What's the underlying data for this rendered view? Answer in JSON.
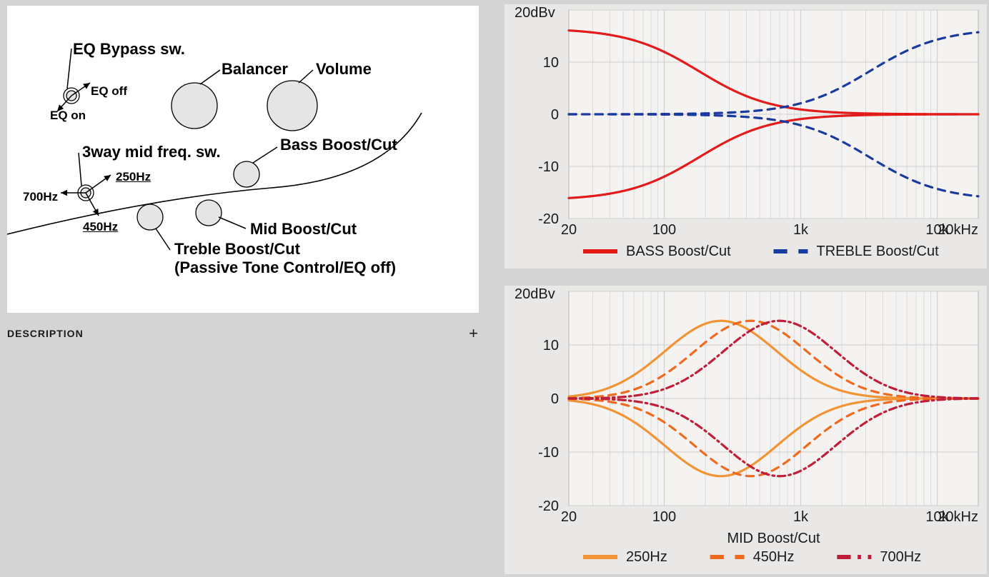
{
  "colors": {
    "page_bg": "#d4d4d4",
    "panel_bg": "#ffffff",
    "chart_bg": "#e9e8e7",
    "plot_bg": "#f4f3f2",
    "grid": "#cfcfcf",
    "axis_text": "#1a1a1a",
    "black": "#000000",
    "knob_fill": "#e5e5e5",
    "series_bass": "#e31b1b",
    "series_treble": "#1a3a9e",
    "series_250": "#f29436",
    "series_450": "#ef6a1f",
    "series_700": "#c01f3a"
  },
  "diagram": {
    "labels": {
      "eq_bypass": "EQ Bypass sw.",
      "balancer": "Balancer",
      "volume": "Volume",
      "eq_off": "EQ off",
      "eq_on": "EQ on",
      "midfreq": "3way mid freq. sw.",
      "bass": "Bass Boost/Cut",
      "f250": "250Hz",
      "f450": "450Hz",
      "f700": "700Hz",
      "mid": "Mid Boost/Cut",
      "treble1": "Treble Boost/Cut",
      "treble2": "(Passive Tone Control/EQ off)"
    },
    "label_fontsize_main": 22,
    "label_fontsize_sub": 17
  },
  "description_heading": "DESCRIPTION",
  "chart_common": {
    "x_ticks": [
      20,
      100,
      1000,
      10000,
      20000
    ],
    "x_tick_labels": [
      "20",
      "100",
      "1k",
      "10k",
      "20kHz"
    ],
    "y_ticks": [
      -20,
      -10,
      0,
      10,
      20
    ],
    "y_tick_labels": [
      "-20",
      "-10",
      "0",
      "10",
      "20dBv"
    ],
    "x_scale": "log",
    "xlim": [
      20,
      20000
    ],
    "ylim": [
      -20,
      20
    ],
    "axis_fontsize": 20,
    "legend_fontsize": 20,
    "line_width": 3.2,
    "swatch_width": 6
  },
  "chart1": {
    "type": "line",
    "legend": [
      {
        "label": "BASS Boost/Cut",
        "color": "#e31b1b",
        "dash": "solid"
      },
      {
        "label": "TREBLE Boost/Cut",
        "color": "#1a3a9e",
        "dash": "dash"
      }
    ],
    "series": [
      {
        "name": "bass_boost",
        "color": "#e31b1b",
        "dash": "solid",
        "shape": "shelf_low",
        "gain": 16.5,
        "fc": 180
      },
      {
        "name": "bass_cut",
        "color": "#e31b1b",
        "dash": "solid",
        "shape": "shelf_low",
        "gain": -16.5,
        "fc": 180
      },
      {
        "name": "treble_boost",
        "color": "#1a3a9e",
        "dash": "dash",
        "shape": "shelf_high",
        "gain": 16.5,
        "fc": 3200
      },
      {
        "name": "treble_cut",
        "color": "#1a3a9e",
        "dash": "dash",
        "shape": "shelf_high",
        "gain": -16.5,
        "fc": 3200
      }
    ]
  },
  "chart2": {
    "type": "line",
    "axis_label": "MID Boost/Cut",
    "legend": [
      {
        "label": "250Hz",
        "color": "#f29436",
        "dash": "solid"
      },
      {
        "label": "450Hz",
        "color": "#ef6a1f",
        "dash": "dash"
      },
      {
        "label": "700Hz",
        "color": "#c01f3a",
        "dash": "dashdot"
      }
    ],
    "series": [
      {
        "name": "250_boost",
        "color": "#f29436",
        "dash": "solid",
        "shape": "bell",
        "gain": 14.5,
        "fc": 260,
        "q": 1.1
      },
      {
        "name": "250_cut",
        "color": "#f29436",
        "dash": "solid",
        "shape": "bell",
        "gain": -14.5,
        "fc": 260,
        "q": 1.1
      },
      {
        "name": "450_boost",
        "color": "#ef6a1f",
        "dash": "dash",
        "shape": "bell",
        "gain": 14.5,
        "fc": 430,
        "q": 1.1
      },
      {
        "name": "450_cut",
        "color": "#ef6a1f",
        "dash": "dash",
        "shape": "bell",
        "gain": -14.5,
        "fc": 430,
        "q": 1.1
      },
      {
        "name": "700_boost",
        "color": "#c01f3a",
        "dash": "dashdot",
        "shape": "bell",
        "gain": 14.5,
        "fc": 700,
        "q": 1.1
      },
      {
        "name": "700_cut",
        "color": "#c01f3a",
        "dash": "dashdot",
        "shape": "bell",
        "gain": -14.5,
        "fc": 700,
        "q": 1.1
      }
    ]
  }
}
